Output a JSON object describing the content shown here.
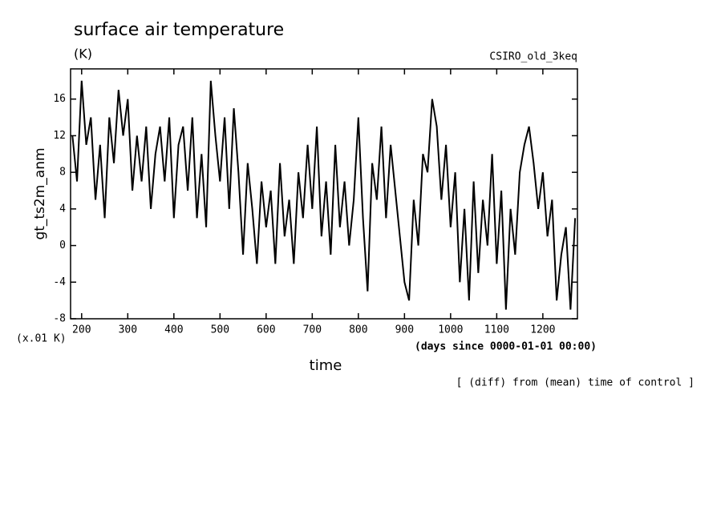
{
  "chart_data": {
    "type": "line",
    "title": "surface air temperature",
    "units": "(K)",
    "subtitle": "CSIRO_old_3keq",
    "y_label": "gt_ts2m_anm",
    "y_scale_note": "(x.01 K)",
    "x_units": "(days since 0000-01-01 00:00)",
    "x_label": "time",
    "annotation": "[ (diff) from (mean) time of control ]",
    "xlim": [
      176,
      1275
    ],
    "ylim": [
      -8,
      19.3
    ],
    "xticks": [
      200,
      300,
      400,
      500,
      600,
      700,
      800,
      900,
      1000,
      1100,
      1200
    ],
    "yticks": [
      -8,
      -4,
      0,
      4,
      8,
      12,
      16
    ],
    "x": [
      180,
      190,
      200,
      210,
      220,
      230,
      240,
      250,
      260,
      270,
      280,
      290,
      300,
      310,
      320,
      330,
      340,
      350,
      360,
      370,
      380,
      390,
      400,
      410,
      420,
      430,
      440,
      450,
      460,
      470,
      480,
      490,
      500,
      510,
      520,
      530,
      540,
      550,
      560,
      570,
      580,
      590,
      600,
      610,
      620,
      630,
      640,
      650,
      660,
      670,
      680,
      690,
      700,
      710,
      720,
      730,
      740,
      750,
      760,
      770,
      780,
      790,
      800,
      810,
      820,
      830,
      840,
      850,
      860,
      870,
      880,
      890,
      900,
      910,
      920,
      930,
      940,
      950,
      960,
      970,
      980,
      990,
      1000,
      1010,
      1020,
      1030,
      1040,
      1050,
      1060,
      1070,
      1080,
      1090,
      1100,
      1110,
      1120,
      1130,
      1140,
      1150,
      1160,
      1170,
      1180,
      1190,
      1200,
      1210,
      1220,
      1230,
      1240,
      1250,
      1260,
      1270
    ],
    "series": [
      {
        "color": "#000000",
        "values": [
          12,
          7,
          18,
          11,
          14,
          5,
          11,
          3,
          14,
          9,
          17,
          12,
          16,
          6,
          12,
          7,
          13,
          4,
          10,
          13,
          7,
          14,
          3,
          11,
          13,
          6,
          14,
          3,
          10,
          2,
          18,
          12,
          7,
          14,
          4,
          15,
          8,
          -1,
          9,
          4,
          -2,
          7,
          2,
          6,
          -2,
          9,
          1,
          5,
          -2,
          8,
          3,
          11,
          4,
          13,
          1,
          7,
          -1,
          11,
          2,
          7,
          0,
          5,
          14,
          3,
          -5,
          9,
          5,
          13,
          3,
          11,
          6,
          1,
          -4,
          -6,
          5,
          0,
          10,
          8,
          16,
          13,
          5,
          11,
          2,
          8,
          -4,
          4,
          -6,
          7,
          -3,
          5,
          0,
          10,
          -2,
          6,
          -7,
          4,
          -1,
          8,
          11,
          13,
          9,
          4,
          8,
          1,
          5,
          -6,
          -1,
          2,
          -7,
          3
        ]
      }
    ]
  }
}
